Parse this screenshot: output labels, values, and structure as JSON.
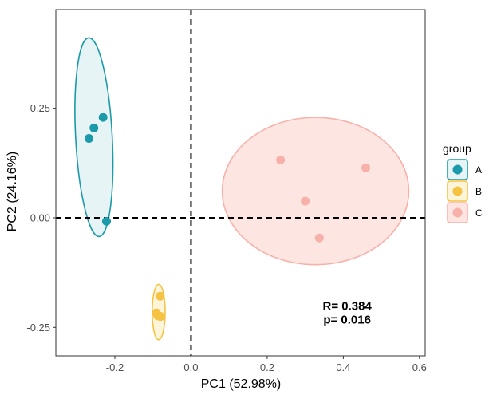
{
  "chart_data": {
    "type": "scatter",
    "xlabel": "PC1 (52.98%)",
    "ylabel": "PC2 (24.16%)",
    "xlim": [
      -0.355,
      0.615
    ],
    "ylim": [
      -0.315,
      0.475
    ],
    "x_ticks": [
      -0.2,
      0.0,
      0.2,
      0.4,
      0.6
    ],
    "x_tick_labels": [
      "-0.2",
      "0.0",
      "0.2",
      "0.4",
      "0.6"
    ],
    "y_ticks": [
      -0.25,
      0.0,
      0.25
    ],
    "y_tick_labels": [
      "-0.25",
      "0.00",
      "0.25"
    ],
    "grid": false,
    "reference_lines": {
      "x": 0,
      "y": 0,
      "style": "dashed"
    },
    "legend": {
      "title": "group",
      "placement": "right",
      "entries": [
        {
          "label": "A",
          "color": "#1b9aaa"
        },
        {
          "label": "B",
          "color": "#f6c243"
        },
        {
          "label": "C",
          "color": "#f8b1a9"
        }
      ]
    },
    "series": [
      {
        "name": "A",
        "color": "#1b9aaa",
        "fill": "#e6f4f6",
        "points": [
          {
            "x": -0.268,
            "y": 0.181
          },
          {
            "x": -0.255,
            "y": 0.205
          },
          {
            "x": -0.231,
            "y": 0.229
          },
          {
            "x": -0.222,
            "y": -0.008
          }
        ],
        "ellipse": {
          "cx": -0.255,
          "cy": 0.184,
          "rx": 0.048,
          "ry": 0.227,
          "angle_deg": -3
        }
      },
      {
        "name": "B",
        "color": "#f6c243",
        "fill": "#fdf5d9",
        "points": [
          {
            "x": -0.081,
            "y": -0.179
          },
          {
            "x": -0.091,
            "y": -0.217
          },
          {
            "x": -0.087,
            "y": -0.224
          },
          {
            "x": -0.08,
            "y": -0.225
          }
        ],
        "ellipse": {
          "cx": -0.085,
          "cy": -0.215,
          "rx": 0.017,
          "ry": 0.063,
          "angle_deg": 0
        }
      },
      {
        "name": "C",
        "color": "#f8b1a9",
        "fill": "#fde5e2",
        "points": [
          {
            "x": 0.235,
            "y": 0.132
          },
          {
            "x": 0.459,
            "y": 0.114
          },
          {
            "x": 0.3,
            "y": 0.038
          },
          {
            "x": 0.337,
            "y": -0.046
          }
        ],
        "ellipse": {
          "cx": 0.327,
          "cy": 0.061,
          "rx": 0.245,
          "ry": 0.168,
          "angle_deg": 0
        }
      }
    ],
    "annotations": [
      "R= 0.384",
      "p= 0.016"
    ],
    "annotation_anchor": {
      "x": 0.41,
      "y": -0.21
    }
  }
}
